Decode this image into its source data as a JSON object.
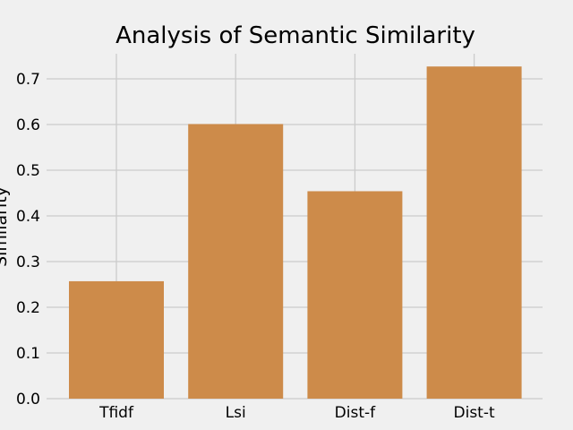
{
  "chart_data": {
    "type": "bar",
    "title": "Analysis of Semantic Similarity",
    "xlabel": "",
    "ylabel": "Similarity",
    "categories": [
      "Tfidf",
      "Lsi",
      "Dist-f",
      "Dist-t"
    ],
    "values": [
      0.257,
      0.601,
      0.454,
      0.727
    ],
    "ylim": [
      0,
      0.76
    ],
    "yticks": [
      "0.0",
      "0.1",
      "0.2",
      "0.3",
      "0.4",
      "0.5",
      "0.6",
      "0.7"
    ],
    "grid": true,
    "bar_color": "#cd8b4a",
    "background_color": "#f0f0f0",
    "grid_color": "#cbcbcb"
  }
}
